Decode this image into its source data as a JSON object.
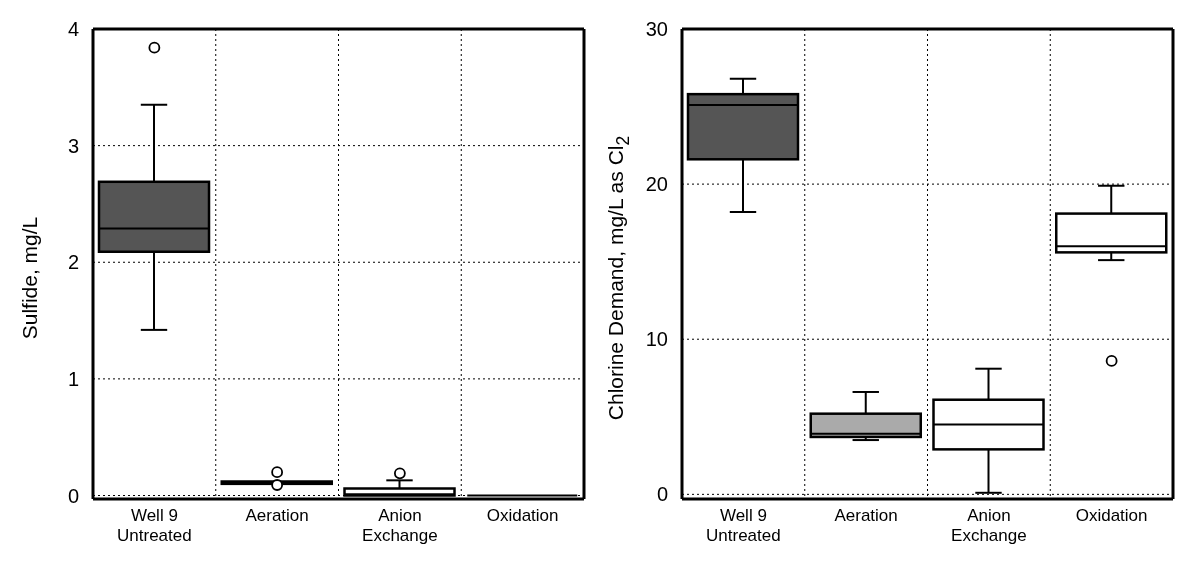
{
  "chart_data": [
    {
      "type": "box",
      "ylabel": "Sulfide, mg/L",
      "categories": [
        "Well 9\nUntreated",
        "Aeration",
        "Anion\nExchange",
        "Oxidation"
      ],
      "ylim": [
        -0.03,
        4
      ],
      "yticks": [
        0,
        1,
        2,
        3,
        4
      ],
      "grid": true,
      "colors": [
        "#555555",
        "#222222",
        "#ffffff",
        "#000000"
      ],
      "boxes": [
        {
          "low": 1.42,
          "q1": 2.09,
          "median": 2.29,
          "q3": 2.69,
          "high": 3.35,
          "outliers": [
            3.84
          ]
        },
        {
          "low": 0.1,
          "q1": 0.1,
          "median": 0.11,
          "q3": 0.12,
          "high": 0.12,
          "outliers": [
            0.2,
            0.09
          ]
        },
        {
          "low": 0,
          "q1": 0,
          "median": 0.01,
          "q3": 0.06,
          "high": 0.13,
          "outliers": [
            0.19
          ]
        },
        {
          "low": 0,
          "q1": 0,
          "median": 0,
          "q3": 0,
          "high": 0
        }
      ]
    },
    {
      "type": "box",
      "ylabel": "Chlorine Demand, mg/L as Cl$_{2}$",
      "categories": [
        "Well 9\nUntreated",
        "Aeration",
        "Anion\nExchange",
        "Oxidation"
      ],
      "ylim": [
        -0.3,
        30
      ],
      "yticks": [
        0,
        10,
        20,
        30
      ],
      "grid": true,
      "colors": [
        "#555555",
        "#aaaaaa",
        "#ffffff",
        "#ffffff"
      ],
      "boxes": [
        {
          "low": 18.2,
          "q1": 21.6,
          "median": 25.1,
          "q3": 25.8,
          "high": 26.8
        },
        {
          "low": 3.5,
          "q1": 3.7,
          "median": 3.9,
          "q3": 5.2,
          "high": 6.6
        },
        {
          "low": 0.1,
          "q1": 2.9,
          "median": 4.5,
          "q3": 6.1,
          "high": 8.1
        },
        {
          "low": 15.1,
          "q1": 15.6,
          "median": 16.0,
          "q3": 18.1,
          "high": 19.9,
          "outliers": [
            8.6
          ]
        }
      ]
    }
  ]
}
